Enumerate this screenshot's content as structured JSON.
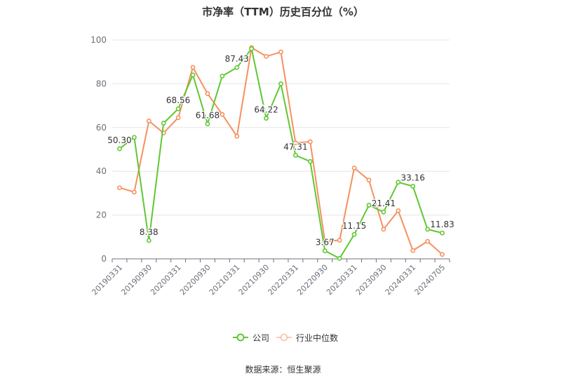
{
  "chart_data": {
    "type": "line",
    "title": "市净率（TTM）历史百分位（%）",
    "ylim": [
      0,
      100
    ],
    "yticks": [
      0,
      20,
      40,
      60,
      80,
      100
    ],
    "grid": true,
    "legend_position": "bottom",
    "x": [
      "20190331",
      "20190630",
      "20190930",
      "20191231",
      "20200331",
      "20200630",
      "20200930",
      "20201231",
      "20210331",
      "20210630",
      "20210930",
      "20211231",
      "20220331",
      "20220630",
      "20220930",
      "20221231",
      "20230331",
      "20230630",
      "20230930",
      "20231231",
      "20240331",
      "20240630",
      "20240705"
    ],
    "x_tick_labels": [
      "20190331",
      "20190930",
      "20200331",
      "20200930",
      "20210331",
      "20210930",
      "20220331",
      "20220930",
      "20230331",
      "20230930",
      "20240331",
      "20240705"
    ],
    "series": [
      {
        "name": "公司",
        "color": "#5fc831",
        "values": [
          50.3,
          55.5,
          8.38,
          62.0,
          68.56,
          84.0,
          61.68,
          83.5,
          87.43,
          96.0,
          64.22,
          80.0,
          47.31,
          44.5,
          3.67,
          0.2,
          11.15,
          24.5,
          21.41,
          35.0,
          33.16,
          13.5,
          11.83
        ],
        "labels": {
          "0": "50.30",
          "2": "8.38",
          "4": "68.56",
          "6": "61.68",
          "8": "87.43",
          "10": "64.22",
          "12": "47.31",
          "14": "3.67",
          "16": "11.15",
          "18": "21.41",
          "20": "33.16",
          "22": "11.83"
        }
      },
      {
        "name": "行业中位数",
        "color": "#f4915f",
        "values": [
          32.5,
          30.5,
          63.0,
          57.5,
          64.5,
          87.5,
          75.5,
          66.0,
          56.0,
          96.5,
          92.5,
          94.5,
          53.0,
          53.5,
          8.0,
          8.5,
          41.5,
          36.0,
          13.5,
          22.0,
          3.8,
          8.0,
          2.0
        ]
      }
    ]
  },
  "footer": "数据来源：恒生聚源"
}
